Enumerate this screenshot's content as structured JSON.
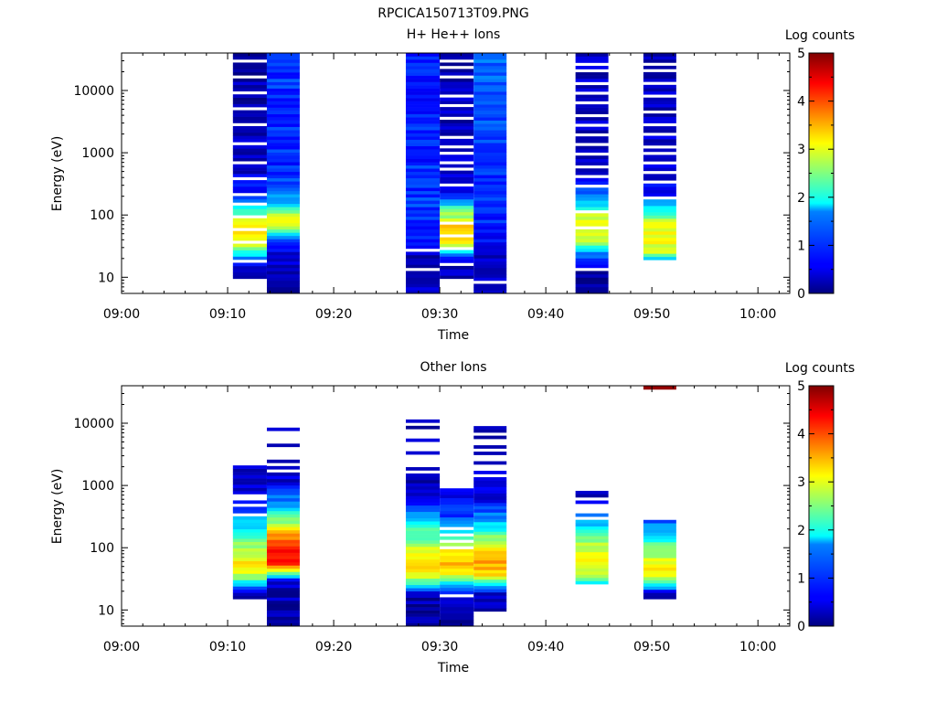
{
  "figure_title": "RPCICA150713T09.PNG",
  "colorbar": {
    "label": "Log counts",
    "ticks": [
      "0",
      "1",
      "2",
      "3",
      "4",
      "5"
    ],
    "range": [
      0,
      5
    ],
    "colormap": "jet"
  },
  "chart_data": [
    {
      "type": "heatmap",
      "title": "H+ He++ Ions",
      "xlabel": "Time",
      "ylabel": "Energy (eV)",
      "x_ticks": [
        "09:00",
        "09:10",
        "09:20",
        "09:30",
        "09:40",
        "09:50",
        "10:00"
      ],
      "xlim": [
        "09:00",
        "10:03"
      ],
      "y_ticks": [
        "10",
        "100",
        "1000",
        "10000"
      ],
      "ylim": [
        5.5,
        40000
      ],
      "yscale": "log",
      "columns": [
        {
          "x0": "09:10.5",
          "x1": "09:13.7",
          "emin": 9.5,
          "emax": 40000,
          "seed": 11,
          "profile": [
            [
              9.5,
              0.3
            ],
            [
              12,
              0.4
            ],
            [
              16,
              0.6
            ],
            [
              20,
              1.3
            ],
            [
              24,
              1.9
            ],
            [
              30,
              2.7
            ],
            [
              40,
              3.1
            ],
            [
              60,
              3.4
            ],
            [
              90,
              2.8
            ],
            [
              140,
              1.6
            ],
            [
              250,
              0.7
            ],
            [
              600,
              0.3
            ],
            [
              40000,
              0.2
            ]
          ],
          "gaps": [
            0.08,
            0.16,
            0.22,
            0.27,
            0.33,
            0.38,
            0.45,
            0.52,
            0.6,
            0.68,
            0.75,
            0.83,
            0.9,
            0.96
          ]
        },
        {
          "x0": "09:13.7",
          "x1": "09:16.8",
          "emin": 5.5,
          "emax": 40000,
          "seed": 23,
          "profile": [
            [
              5.5,
              0.15
            ],
            [
              10,
              0.2
            ],
            [
              25,
              0.5
            ],
            [
              35,
              0.9
            ],
            [
              45,
              1.3
            ],
            [
              55,
              2.5
            ],
            [
              70,
              3.0
            ],
            [
              100,
              2.8
            ],
            [
              130,
              2.0
            ],
            [
              170,
              1.5
            ],
            [
              250,
              1.1
            ],
            [
              600,
              0.8
            ],
            [
              40000,
              0.9
            ]
          ],
          "gaps": []
        },
        {
          "x0": "09:26.8",
          "x1": "09:30.0",
          "emin": 5.5,
          "emax": 40000,
          "seed": 37,
          "profile": [
            [
              5.5,
              0.5
            ],
            [
              10,
              0.4
            ],
            [
              15,
              0.2
            ],
            [
              22,
              0.3
            ],
            [
              30,
              0.6
            ],
            [
              60,
              0.8
            ],
            [
              200,
              0.9
            ],
            [
              1000,
              0.8
            ],
            [
              40000,
              0.7
            ]
          ],
          "gaps": [
            0.1,
            0.18
          ]
        },
        {
          "x0": "09:30.0",
          "x1": "09:33.2",
          "emin": 9.5,
          "emax": 40000,
          "seed": 41,
          "profile": [
            [
              9.5,
              0.2
            ],
            [
              15,
              0.3
            ],
            [
              22,
              1.1
            ],
            [
              30,
              2.7
            ],
            [
              45,
              3.4
            ],
            [
              70,
              3.2
            ],
            [
              120,
              2.4
            ],
            [
              180,
              1.0
            ],
            [
              300,
              0.4
            ],
            [
              40000,
              0.2
            ]
          ],
          "gaps": [
            0.06,
            0.13,
            0.19,
            0.24,
            0.42,
            0.48,
            0.51,
            0.55,
            0.59,
            0.63,
            0.71,
            0.77,
            0.81,
            0.9,
            0.94,
            0.97
          ]
        },
        {
          "x0": "09:33.2",
          "x1": "09:36.3",
          "emin": 5.5,
          "emax": 40000,
          "seed": 53,
          "profile": [
            [
              5.5,
              0.5
            ],
            [
              10,
              0.4
            ],
            [
              18,
              0.3
            ],
            [
              30,
              0.6
            ],
            [
              80,
              0.8
            ],
            [
              300,
              0.9
            ],
            [
              2000,
              1.0
            ],
            [
              40000,
              1.1
            ]
          ],
          "gaps": [
            0.05
          ]
        },
        {
          "x0": "09:42.8",
          "x1": "09:45.9",
          "emin": 5.5,
          "emax": 40000,
          "seed": 67,
          "profile": [
            [
              5.5,
              0.2
            ],
            [
              12,
              0.2
            ],
            [
              25,
              1.4
            ],
            [
              35,
              2.5
            ],
            [
              50,
              3.1
            ],
            [
              80,
              3.2
            ],
            [
              110,
              2.6
            ],
            [
              160,
              1.6
            ],
            [
              250,
              0.9
            ],
            [
              500,
              0.4
            ],
            [
              40000,
              0.3
            ]
          ],
          "gaps": [
            0.1,
            0.27,
            0.34,
            0.45,
            0.49,
            0.53,
            0.58,
            0.62,
            0.66,
            0.7,
            0.74,
            0.79,
            0.83,
            0.87,
            0.93,
            0.96
          ]
        },
        {
          "x0": "09:49.2",
          "x1": "09:52.3",
          "emin": 19,
          "emax": 40000,
          "seed": 79,
          "profile": [
            [
              19,
              1.5
            ],
            [
              25,
              2.8
            ],
            [
              40,
              3.2
            ],
            [
              70,
              3.0
            ],
            [
              100,
              2.4
            ],
            [
              140,
              1.6
            ],
            [
              200,
              0.8
            ],
            [
              400,
              0.4
            ],
            [
              40000,
              0.3
            ]
          ],
          "gaps": [
            0.3,
            0.37,
            0.43,
            0.47,
            0.51,
            0.55,
            0.61,
            0.66,
            0.72,
            0.79,
            0.85,
            0.91,
            0.95
          ]
        }
      ]
    },
    {
      "type": "heatmap",
      "title": "Other Ions",
      "xlabel": "Time",
      "ylabel": "Energy (eV)",
      "x_ticks": [
        "09:00",
        "09:10",
        "09:20",
        "09:30",
        "09:40",
        "09:50",
        "10:00"
      ],
      "xlim": [
        "09:00",
        "10:03"
      ],
      "y_ticks": [
        "10",
        "100",
        "1000",
        "10000"
      ],
      "ylim": [
        5.5,
        40000
      ],
      "yscale": "log",
      "columns": [
        {
          "x0": "09:10.5",
          "x1": "09:13.7",
          "emin": 15,
          "emax": 2100,
          "seed": 101,
          "profile": [
            [
              15,
              0.2
            ],
            [
              20,
              0.4
            ],
            [
              25,
              1.5
            ],
            [
              35,
              2.7
            ],
            [
              50,
              3.2
            ],
            [
              80,
              3.0
            ],
            [
              120,
              2.5
            ],
            [
              200,
              1.9
            ],
            [
              350,
              1.2
            ],
            [
              600,
              0.5
            ],
            [
              2100,
              0.3
            ]
          ],
          "gaps": [
            0.62,
            0.7,
            0.74,
            0.78
          ]
        },
        {
          "x0": "09:13.7",
          "x1": "09:16.8",
          "emin": 5.5,
          "emax": 8500,
          "seed": 113,
          "profile": [
            [
              5.5,
              0.2
            ],
            [
              30,
              0.3
            ],
            [
              35,
              2.0
            ],
            [
              45,
              3.5
            ],
            [
              60,
              4.3
            ],
            [
              90,
              4.5
            ],
            [
              130,
              3.9
            ],
            [
              200,
              3.1
            ],
            [
              350,
              2.0
            ],
            [
              600,
              1.2
            ],
            [
              1200,
              0.4
            ],
            [
              8500,
              0.2
            ]
          ],
          "gaps": [
            0.79,
            0.81,
            0.84,
            0.86,
            0.88,
            0.9,
            0.92,
            0.94,
            0.96,
            0.98
          ]
        },
        {
          "x0": "09:26.8",
          "x1": "09:30.0",
          "emin": 5.5,
          "emax": 11500,
          "seed": 127,
          "profile": [
            [
              5.5,
              0.2
            ],
            [
              18,
              0.2
            ],
            [
              22,
              1.2
            ],
            [
              30,
              2.6
            ],
            [
              45,
              3.5
            ],
            [
              70,
              3.3
            ],
            [
              100,
              2.8
            ],
            [
              200,
              2.1
            ],
            [
              400,
              1.1
            ],
            [
              900,
              0.3
            ],
            [
              11500,
              0.3
            ]
          ],
          "gaps": [
            0.75,
            0.77,
            0.79,
            0.81,
            0.83,
            0.85,
            0.87,
            0.89,
            0.91,
            0.93,
            0.95,
            0.97
          ]
        },
        {
          "x0": "09:30.0",
          "x1": "09:33.2",
          "emin": 5.5,
          "emax": 900,
          "seed": 131,
          "profile": [
            [
              5.5,
              0.2
            ],
            [
              12,
              0.2
            ],
            [
              25,
              1.4
            ],
            [
              40,
              3.2
            ],
            [
              60,
              3.5
            ],
            [
              100,
              3.1
            ],
            [
              180,
              2.0
            ],
            [
              300,
              1.0
            ],
            [
              900,
              0.4
            ]
          ],
          "gaps": [
            0.22,
            0.58,
            0.62,
            0.66,
            0.71
          ]
        },
        {
          "x0": "09:33.2",
          "x1": "09:36.3",
          "emin": 9.5,
          "emax": 9000,
          "seed": 149,
          "profile": [
            [
              9.5,
              0.2
            ],
            [
              18,
              0.4
            ],
            [
              25,
              1.8
            ],
            [
              35,
              3.2
            ],
            [
              50,
              3.6
            ],
            [
              80,
              3.3
            ],
            [
              130,
              2.7
            ],
            [
              250,
              1.6
            ],
            [
              600,
              0.5
            ],
            [
              9000,
              0.3
            ]
          ],
          "gaps": [
            0.74,
            0.76,
            0.79,
            0.82,
            0.84,
            0.87,
            0.9,
            0.93,
            0.95
          ]
        },
        {
          "x0": "09:42.8",
          "x1": "09:45.9",
          "emin": 26,
          "emax": 820,
          "seed": 157,
          "profile": [
            [
              26,
              1.7
            ],
            [
              35,
              2.8
            ],
            [
              55,
              3.3
            ],
            [
              90,
              3.0
            ],
            [
              150,
              2.3
            ],
            [
              250,
              1.5
            ],
            [
              400,
              0.7
            ],
            [
              820,
              0.3
            ]
          ],
          "gaps": [
            0.72,
            0.78,
            0.82,
            0.86,
            0.9
          ]
        },
        {
          "x0": "09:49.2",
          "x1": "09:52.3",
          "emin": 15,
          "emax": 280,
          "seed": 163,
          "profile": [
            [
              15,
              0.2
            ],
            [
              20,
              0.6
            ],
            [
              25,
              2.0
            ],
            [
              40,
              3.1
            ],
            [
              60,
              3.0
            ],
            [
              100,
              2.5
            ],
            [
              180,
              1.6
            ],
            [
              280,
              1.0
            ]
          ],
          "gaps": []
        },
        {
          "x0": "09:49.2",
          "x1": "09:52.3",
          "emin": 35000,
          "emax": 40000,
          "seed": 171,
          "profile": [
            [
              35000,
              5.0
            ],
            [
              40000,
              5.0
            ]
          ],
          "gaps": []
        }
      ]
    }
  ]
}
